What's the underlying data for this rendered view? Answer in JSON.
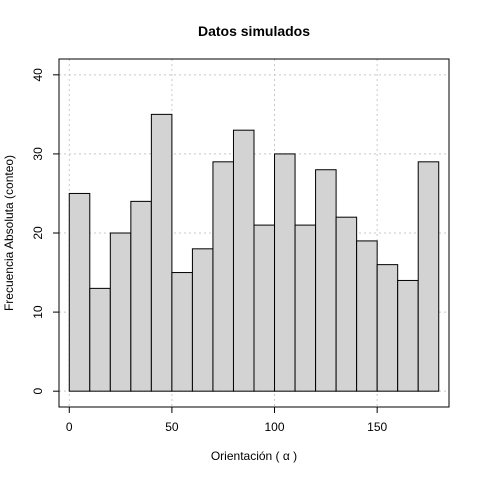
{
  "chart_data": {
    "type": "bar",
    "title": "Datos simulados",
    "xlabel": "Orientación ( α )",
    "ylabel": "Frecuencia Absoluta (conteo)",
    "bin_width": 10,
    "bins": [
      {
        "x0": 0,
        "x1": 10,
        "count": 25
      },
      {
        "x0": 10,
        "x1": 20,
        "count": 13
      },
      {
        "x0": 20,
        "x1": 30,
        "count": 20
      },
      {
        "x0": 30,
        "x1": 40,
        "count": 24
      },
      {
        "x0": 40,
        "x1": 50,
        "count": 35
      },
      {
        "x0": 50,
        "x1": 60,
        "count": 15
      },
      {
        "x0": 60,
        "x1": 70,
        "count": 18
      },
      {
        "x0": 70,
        "x1": 80,
        "count": 29
      },
      {
        "x0": 80,
        "x1": 90,
        "count": 33
      },
      {
        "x0": 90,
        "x1": 100,
        "count": 21
      },
      {
        "x0": 100,
        "x1": 110,
        "count": 30
      },
      {
        "x0": 110,
        "x1": 120,
        "count": 21
      },
      {
        "x0": 120,
        "x1": 130,
        "count": 28
      },
      {
        "x0": 130,
        "x1": 140,
        "count": 22
      },
      {
        "x0": 140,
        "x1": 150,
        "count": 19
      },
      {
        "x0": 150,
        "x1": 160,
        "count": 16
      },
      {
        "x0": 160,
        "x1": 170,
        "count": 14
      },
      {
        "x0": 170,
        "x1": 180,
        "count": 29
      }
    ],
    "xlim": [
      -5,
      185
    ],
    "ylim": [
      -2,
      42
    ],
    "xticks": [
      0,
      50,
      100,
      150
    ],
    "yticks": [
      0,
      10,
      20,
      30,
      40
    ],
    "grid": true,
    "bar_fill": "#d3d3d3",
    "bar_stroke": "#000000",
    "grid_color": "#c8c8c8"
  }
}
